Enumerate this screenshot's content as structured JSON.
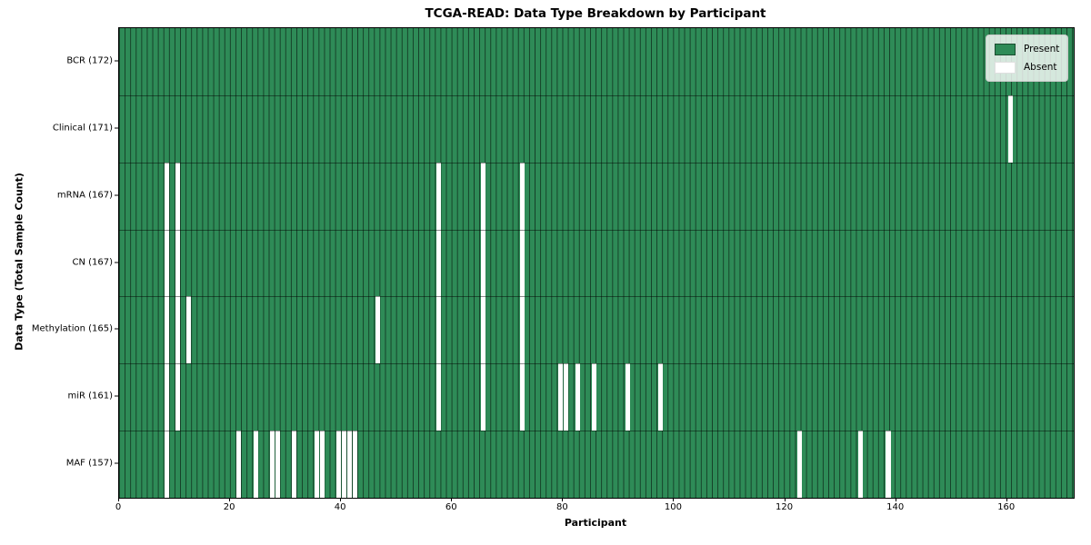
{
  "chart_data": {
    "type": "heatmap",
    "title": "TCGA-READ: Data Type Breakdown by Participant",
    "xlabel": "Participant",
    "ylabel": "Data Type (Total Sample Count)",
    "n_participants": 172,
    "xlim": [
      0,
      172
    ],
    "x_ticks": [
      0,
      20,
      40,
      60,
      80,
      100,
      120,
      140,
      160
    ],
    "grid": false,
    "legend_position": "upper right",
    "rows": [
      {
        "label": "BCR (172)",
        "data_type": "BCR",
        "total": 172,
        "absent_participants": []
      },
      {
        "label": "Clinical (171)",
        "data_type": "Clinical",
        "total": 171,
        "absent_participants": [
          160
        ]
      },
      {
        "label": "mRNA (167)",
        "data_type": "mRNA",
        "total": 167,
        "absent_participants": [
          8,
          10,
          57,
          65,
          72
        ]
      },
      {
        "label": "CN (167)",
        "data_type": "CN",
        "total": 167,
        "absent_participants": [
          8,
          10,
          57,
          65,
          72
        ]
      },
      {
        "label": "Methylation (165)",
        "data_type": "Methylation",
        "total": 165,
        "absent_participants": [
          8,
          10,
          12,
          46,
          57,
          65,
          72
        ]
      },
      {
        "label": "miR (161)",
        "data_type": "miR",
        "total": 161,
        "absent_participants": [
          8,
          10,
          57,
          65,
          72,
          79,
          80,
          82,
          85,
          91,
          97
        ]
      },
      {
        "label": "MAF (157)",
        "data_type": "MAF",
        "total": 157,
        "absent_participants": [
          8,
          21,
          24,
          27,
          28,
          31,
          35,
          36,
          39,
          40,
          41,
          42,
          122,
          133,
          138
        ]
      }
    ],
    "legend": [
      {
        "label": "Present",
        "color": "#2e8b57"
      },
      {
        "label": "Absent",
        "color": "#ffffff"
      }
    ],
    "colors": {
      "present": "#2e8b57",
      "absent": "#ffffff",
      "bar_edge": "rgba(0,0,0,0.55)",
      "row_separator": "rgba(0,0,0,0.45)"
    }
  }
}
